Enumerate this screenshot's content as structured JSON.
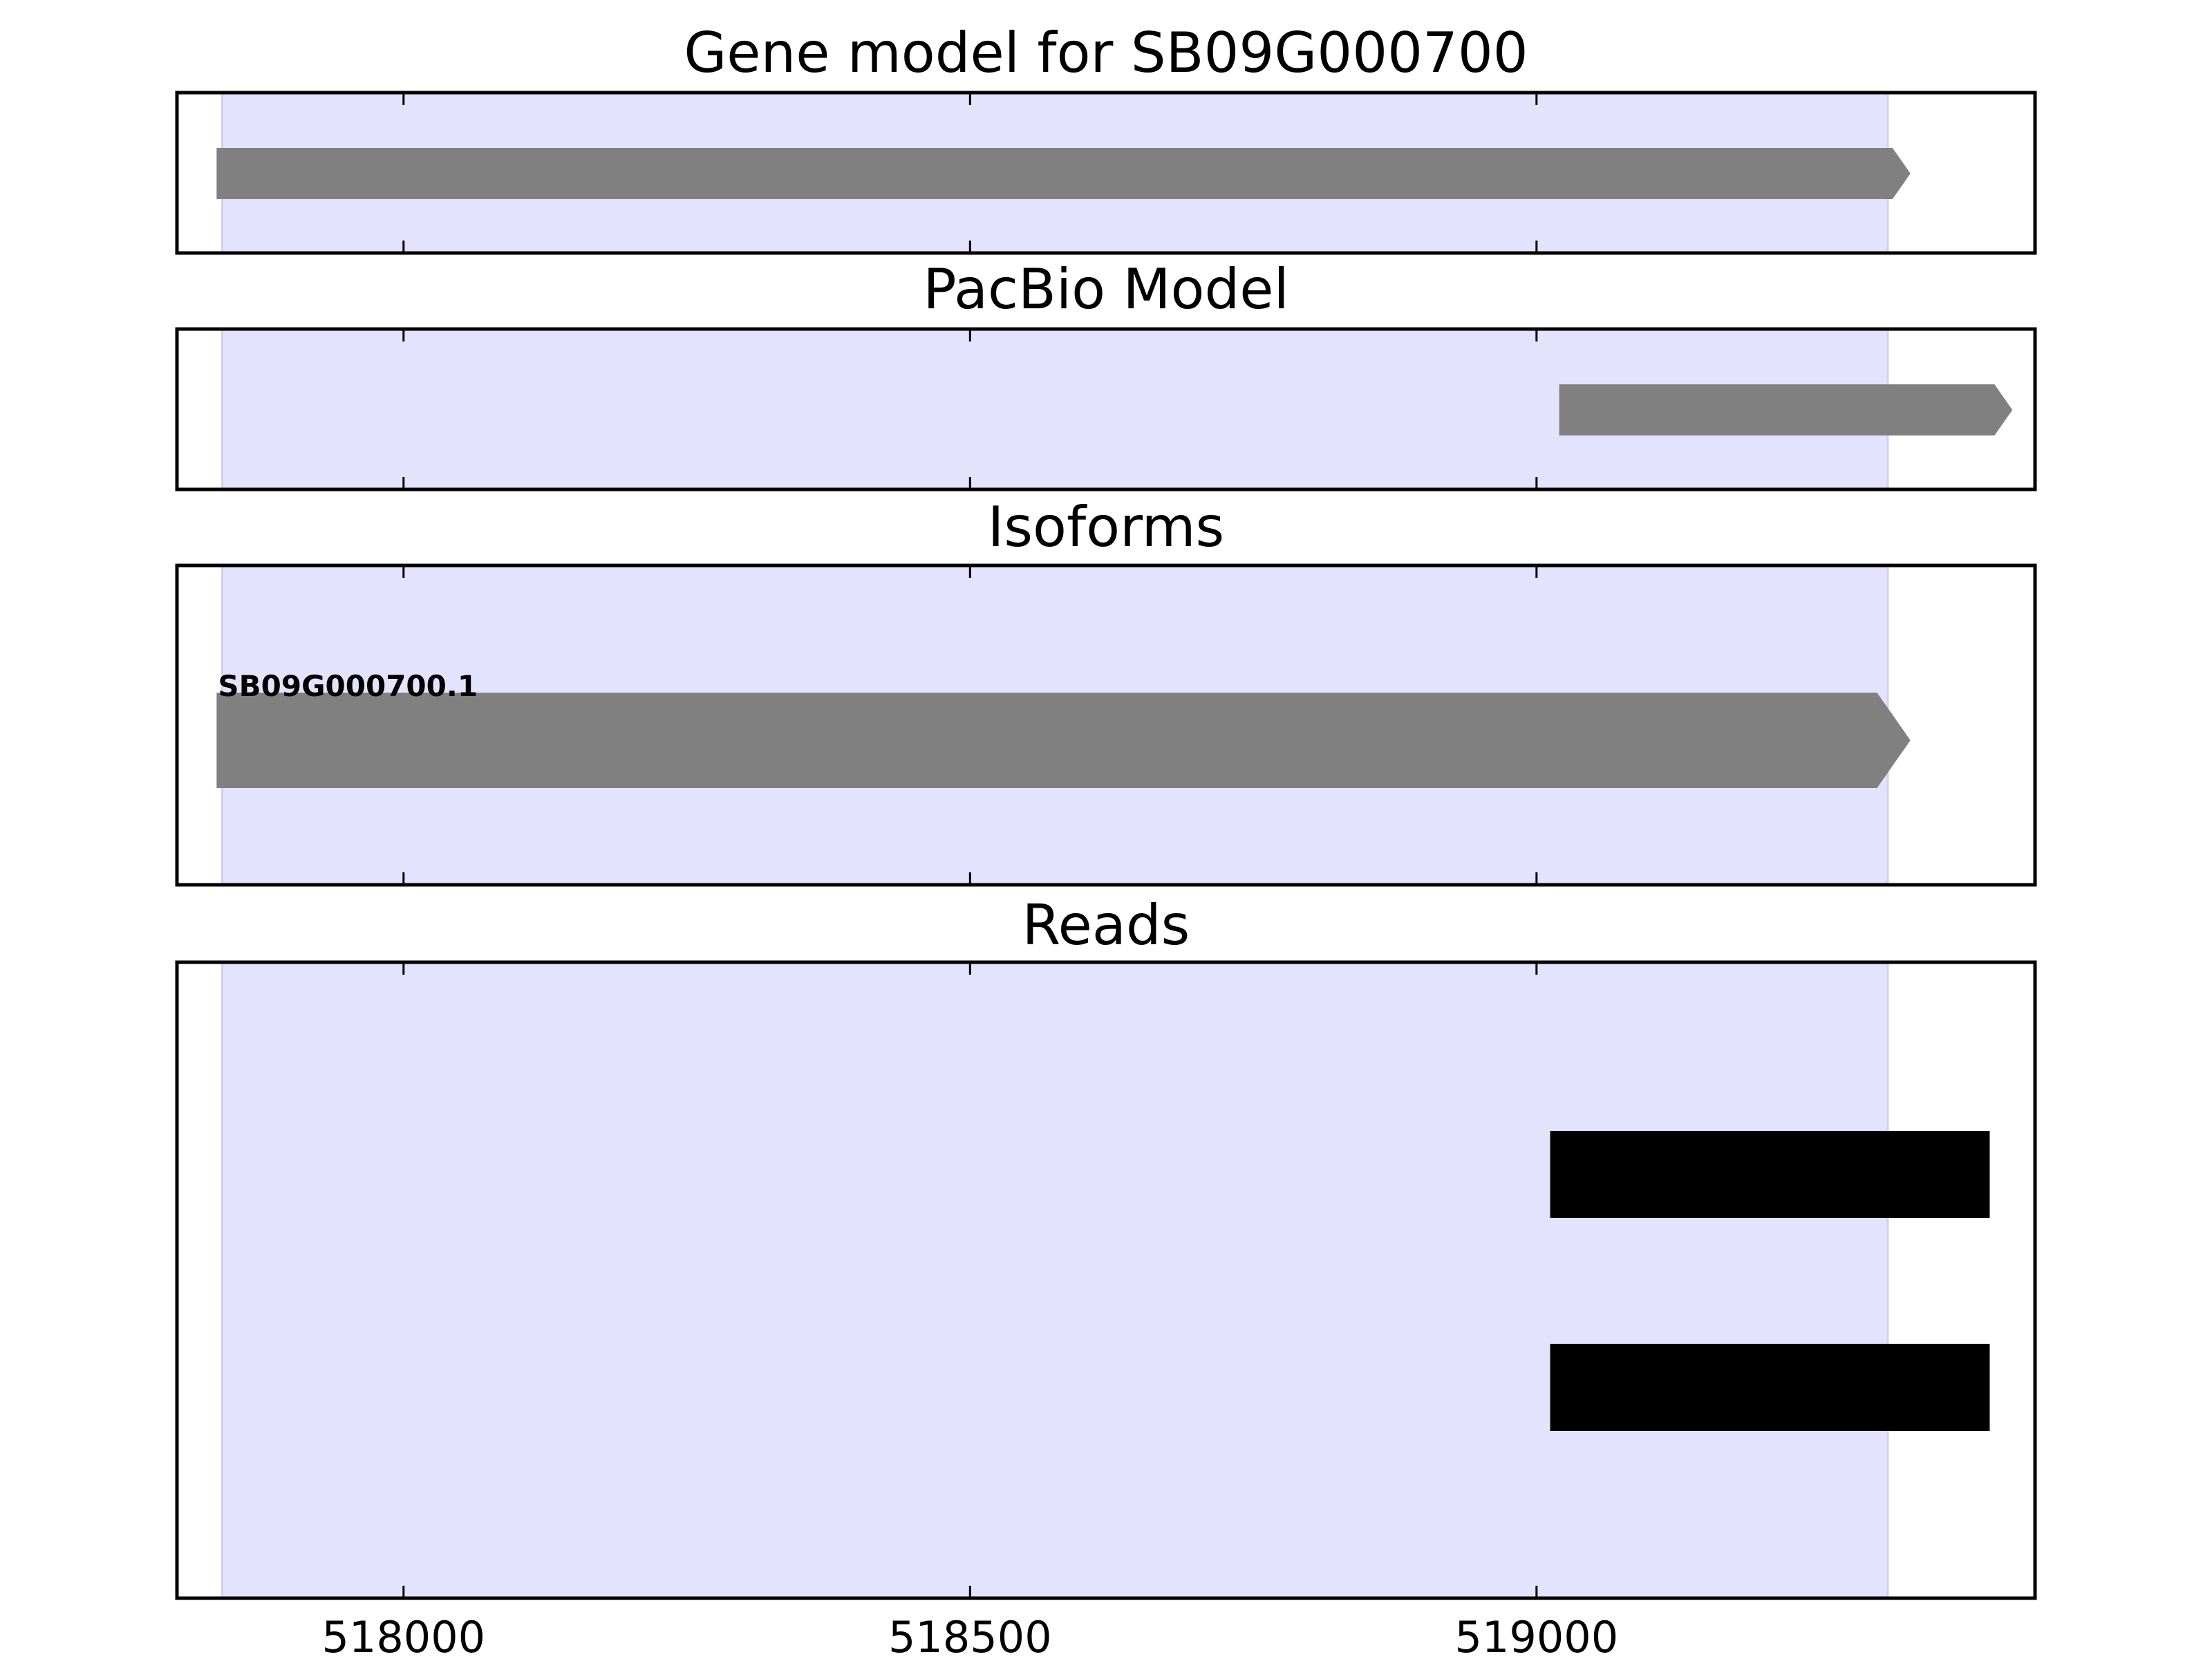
{
  "chart_data": {
    "type": "gene-track",
    "x_axis": {
      "xlim": [
        517800,
        519440
      ],
      "ticks": [
        518000,
        518500,
        519000
      ],
      "tick_labels": [
        "518000",
        "518500",
        "519000"
      ]
    },
    "highlight_region": {
      "start": 517840,
      "end": 519310,
      "color": "#e3e3fd"
    },
    "panels": [
      {
        "id": "gene-model",
        "title": "Gene model for SB09G000700",
        "features": [
          {
            "start": 517835,
            "end": 519330,
            "strand": "+",
            "color": "#808080"
          }
        ]
      },
      {
        "id": "pacbio-model",
        "title": "PacBio Model",
        "features": [
          {
            "start": 519020,
            "end": 519420,
            "strand": "+",
            "color": "#808080"
          }
        ]
      },
      {
        "id": "isoforms",
        "title": "Isoforms",
        "features": [
          {
            "label": "SB09G000700.1",
            "start": 517835,
            "end": 519330,
            "strand": "+",
            "color": "#808080"
          }
        ]
      },
      {
        "id": "reads",
        "title": "Reads",
        "features": [
          {
            "start": 519012,
            "end": 519400,
            "color": "#000000"
          },
          {
            "start": 519012,
            "end": 519400,
            "color": "#000000"
          }
        ]
      }
    ]
  }
}
